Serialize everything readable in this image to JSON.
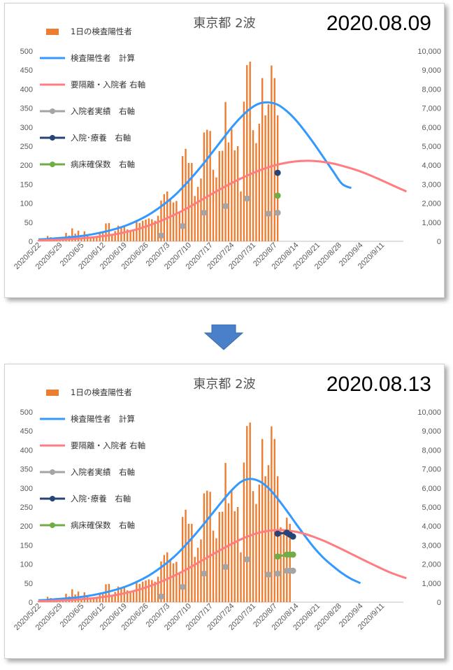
{
  "colors": {
    "bars": "#ED7D31",
    "calc": "#3399FF",
    "required": "#FF7C80",
    "admitted": "#A5A5A5",
    "hospital_recuperation": "#264478",
    "beds": "#70AD47",
    "arrow": "#4A7FC9"
  },
  "legend": {
    "bars": "1日の検査陽性者",
    "calc": "検査陽性者　計算",
    "required": "要隔離・入院者 右軸",
    "admitted": "入院者実績　右軸",
    "hospital": "入院･療養　右軸",
    "beds": "病床確保数　右軸"
  },
  "panels": [
    {
      "title": "東京都 2波",
      "date": "2020.08.09"
    },
    {
      "title": "東京都 2波",
      "date": "2020.08.13"
    }
  ],
  "chart_data": [
    {
      "type": "bar",
      "title": "東京都 2波",
      "subtitle": "2020.08.09",
      "y_left": {
        "min": 0,
        "max": 500,
        "ticks": [
          0,
          50,
          100,
          150,
          200,
          250,
          300,
          350,
          400,
          450,
          500
        ]
      },
      "y_right": {
        "min": 0,
        "max": 10000,
        "ticks": [
          "0",
          "1,000",
          "2,000",
          "3,000",
          "4,000",
          "5,000",
          "6,000",
          "7,000",
          "8,000",
          "9,000",
          "10,000"
        ]
      },
      "x_ticks": [
        "2020/5/22",
        "2020/5/29",
        "2020/6/5",
        "2020/6/12",
        "2020/6/19",
        "2020/6/26",
        "2020/7/3",
        "2020/7/10",
        "2020/7/17",
        "2020/7/24",
        "2020/7/31",
        "2020/8/7",
        "2020/8/14",
        "2020/8/21",
        "2020/8/28",
        "2020/9/4",
        "2020/9/11"
      ],
      "x_range": [
        "2020-05-22",
        "2020-09-18"
      ],
      "bars": {
        "start": "2020-05-22",
        "values": [
          3,
          2,
          2,
          14,
          11,
          8,
          10,
          5,
          11,
          22,
          15,
          34,
          20,
          28,
          9,
          26,
          18,
          12,
          12,
          14,
          25,
          24,
          47,
          48,
          16,
          27,
          41,
          35,
          39,
          31,
          29,
          29,
          55,
          48,
          54,
          57,
          60,
          58,
          54,
          67,
          107,
          124,
          131,
          111,
          102,
          106,
          75,
          224,
          243,
          206,
          206,
          119,
          143,
          165,
          286,
          293,
          290,
          188,
          168,
          237,
          238,
          366,
          260,
          295,
          239,
          250,
          131,
          367,
          463,
          472,
          292,
          258,
          309,
          429,
          331,
          360,
          462,
          429,
          331
        ]
      },
      "series": [
        {
          "name": "検査陽性者　計算",
          "axis": "left",
          "start": "2020-05-22",
          "step": 3,
          "values": [
            5,
            6,
            8,
            10,
            12,
            15,
            19,
            24,
            30,
            37,
            46,
            57,
            70,
            86,
            104,
            125,
            150,
            177,
            206,
            237,
            268,
            299,
            326,
            348,
            362,
            365,
            359,
            342,
            318,
            288,
            255,
            220,
            185,
            151,
            140
          ]
        },
        {
          "name": "要隔離・入院者 右軸",
          "axis": "right",
          "start": "2020-05-22",
          "step": 3,
          "values": [
            50,
            60,
            80,
            100,
            130,
            170,
            210,
            270,
            340,
            430,
            540,
            670,
            830,
            1010,
            1220,
            1450,
            1700,
            1970,
            2250,
            2530,
            2800,
            3060,
            3300,
            3520,
            3720,
            3890,
            4030,
            4130,
            4200,
            4230,
            4220,
            4170,
            4090,
            3970,
            3830,
            3670,
            3480,
            3270,
            3050,
            2830,
            2620
          ]
        },
        {
          "name": "入院者実績　右軸",
          "axis": "right",
          "points": [
            [
              "2020-07-01",
              300
            ],
            [
              "2020-07-08",
              800
            ],
            [
              "2020-07-15",
              1500
            ],
            [
              "2020-07-22",
              1850
            ],
            [
              "2020-07-29",
              2250
            ],
            [
              "2020-08-05",
              1450
            ],
            [
              "2020-08-08",
              1500
            ]
          ]
        },
        {
          "name": "入院･療養　右軸",
          "axis": "right",
          "points": [
            [
              "2020-08-08",
              3600
            ]
          ]
        },
        {
          "name": "病床確保数　右軸",
          "axis": "right",
          "points": [
            [
              "2020-08-08",
              2400
            ]
          ]
        }
      ]
    },
    {
      "type": "bar",
      "title": "東京都 2波",
      "subtitle": "2020.08.13",
      "y_left": {
        "min": 0,
        "max": 500,
        "ticks": [
          0,
          50,
          100,
          150,
          200,
          250,
          300,
          350,
          400,
          450,
          500
        ]
      },
      "y_right": {
        "min": 0,
        "max": 10000,
        "ticks": [
          "0",
          "1,000",
          "2,000",
          "3,000",
          "4,000",
          "5,000",
          "6,000",
          "7,000",
          "8,000",
          "9,000",
          "10,000"
        ]
      },
      "x_ticks": [
        "2020/5/22",
        "2020/5/29",
        "2020/6/5",
        "2020/6/12",
        "2020/6/19",
        "2020/6/26",
        "2020/7/3",
        "2020/7/10",
        "2020/7/17",
        "2020/7/24",
        "2020/7/31",
        "2020/8/7",
        "2020/8/14",
        "2020/8/21",
        "2020/8/28",
        "2020/9/4",
        "2020/9/11"
      ],
      "x_range": [
        "2020-05-22",
        "2020-09-18"
      ],
      "bars": {
        "start": "2020-05-22",
        "values": [
          3,
          2,
          2,
          14,
          11,
          8,
          10,
          5,
          11,
          22,
          15,
          34,
          20,
          28,
          9,
          26,
          18,
          12,
          12,
          14,
          25,
          24,
          47,
          48,
          16,
          27,
          41,
          35,
          39,
          31,
          29,
          29,
          55,
          48,
          54,
          57,
          60,
          58,
          54,
          67,
          107,
          124,
          131,
          111,
          102,
          106,
          75,
          224,
          243,
          206,
          206,
          119,
          143,
          165,
          286,
          293,
          290,
          188,
          168,
          237,
          238,
          366,
          260,
          295,
          239,
          250,
          131,
          367,
          463,
          472,
          292,
          258,
          309,
          429,
          331,
          360,
          462,
          429,
          331,
          197,
          188,
          222,
          206
        ]
      },
      "series": [
        {
          "name": "検査陽性者　計算",
          "axis": "left",
          "start": "2020-05-22",
          "step": 3,
          "values": [
            5,
            6,
            8,
            10,
            12,
            15,
            19,
            24,
            30,
            37,
            46,
            57,
            70,
            86,
            104,
            125,
            150,
            177,
            206,
            236,
            266,
            294,
            316,
            324,
            318,
            300,
            272,
            240,
            206,
            173,
            142,
            116,
            95,
            76,
            61,
            50
          ]
        },
        {
          "name": "要隔離・入院者 右軸",
          "axis": "right",
          "start": "2020-05-22",
          "step": 3,
          "values": [
            50,
            60,
            80,
            100,
            130,
            170,
            210,
            270,
            340,
            430,
            540,
            670,
            830,
            1010,
            1220,
            1450,
            1700,
            1970,
            2250,
            2530,
            2800,
            3060,
            3300,
            3500,
            3650,
            3750,
            3790,
            3770,
            3700,
            3580,
            3420,
            3230,
            3010,
            2780,
            2540,
            2300,
            2060,
            1830,
            1610,
            1420,
            1260
          ]
        },
        {
          "name": "入院者実績　右軸",
          "axis": "right",
          "points": [
            [
              "2020-07-01",
              300
            ],
            [
              "2020-07-08",
              800
            ],
            [
              "2020-07-15",
              1500
            ],
            [
              "2020-07-22",
              1850
            ],
            [
              "2020-07-29",
              2250
            ],
            [
              "2020-08-05",
              1450
            ],
            [
              "2020-08-08",
              1500
            ],
            [
              "2020-08-11",
              1650
            ],
            [
              "2020-08-12",
              1650
            ],
            [
              "2020-08-13",
              1650
            ]
          ]
        },
        {
          "name": "入院･療養　右軸",
          "axis": "right",
          "points": [
            [
              "2020-08-08",
              3600
            ],
            [
              "2020-08-11",
              3650
            ],
            [
              "2020-08-12",
              3550
            ],
            [
              "2020-08-13",
              3450
            ]
          ]
        },
        {
          "name": "病床確保数　右軸",
          "axis": "right",
          "points": [
            [
              "2020-08-08",
              2400
            ],
            [
              "2020-08-11",
              2500
            ],
            [
              "2020-08-12",
              2500
            ],
            [
              "2020-08-13",
              2500
            ]
          ]
        }
      ]
    }
  ]
}
